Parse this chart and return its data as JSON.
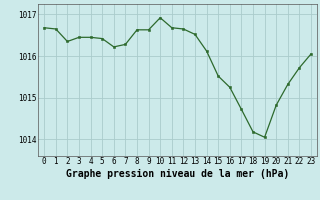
{
  "x": [
    0,
    1,
    2,
    3,
    4,
    5,
    6,
    7,
    8,
    9,
    10,
    11,
    12,
    13,
    14,
    15,
    16,
    17,
    18,
    19,
    20,
    21,
    22,
    23
  ],
  "y": [
    1016.68,
    1016.65,
    1016.35,
    1016.45,
    1016.45,
    1016.42,
    1016.22,
    1016.28,
    1016.63,
    1016.63,
    1016.92,
    1016.68,
    1016.65,
    1016.52,
    1016.12,
    1015.52,
    1015.25,
    1014.72,
    1014.18,
    1014.05,
    1014.82,
    1015.32,
    1015.72,
    1016.05
  ],
  "line_color": "#2d6a2d",
  "marker_color": "#2d6a2d",
  "bg_color": "#cceaea",
  "grid_color": "#aacccc",
  "title": "Graphe pression niveau de la mer (hPa)",
  "ylim": [
    1013.6,
    1017.25
  ],
  "yticks": [
    1014,
    1015,
    1016,
    1017
  ],
  "xticks": [
    0,
    1,
    2,
    3,
    4,
    5,
    6,
    7,
    8,
    9,
    10,
    11,
    12,
    13,
    14,
    15,
    16,
    17,
    18,
    19,
    20,
    21,
    22,
    23
  ],
  "title_fontsize": 7.0,
  "tick_fontsize": 5.5
}
